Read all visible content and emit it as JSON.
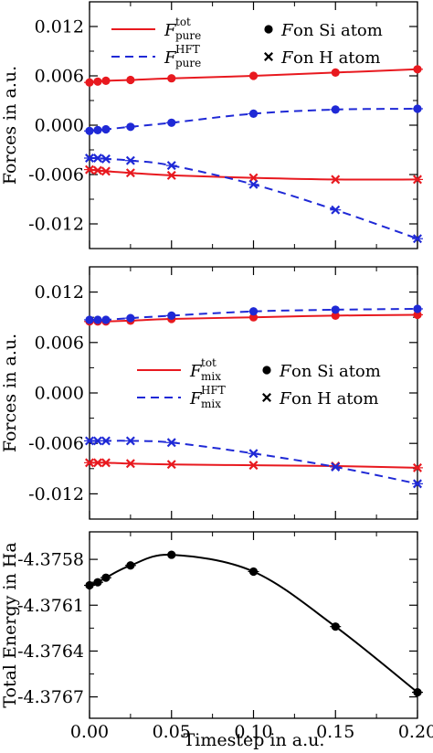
{
  "chart_data": [
    {
      "type": "line",
      "x": [
        0.0,
        0.005,
        0.01,
        0.025,
        0.05,
        0.1,
        0.15,
        0.2
      ],
      "ylim": [
        -0.015,
        0.015
      ],
      "yticks": [
        0.012,
        0.006,
        0.0,
        -0.006,
        -0.012
      ],
      "ytick_labels": [
        "0.012",
        "0.006",
        "0.000",
        "-0.006",
        "-0.012"
      ],
      "ylabel": "Forces in a.u.",
      "legend": [
        {
          "key": "tot",
          "style": "solid",
          "color": "#e8191f",
          "label_main": "F",
          "label_sup": "tot",
          "label_sub": "pure"
        },
        {
          "key": "hft",
          "style": "dashed",
          "color": "#1f29d6",
          "label_main": "F",
          "label_sup": "HFT",
          "label_sub": "pure"
        }
      ],
      "marker_legend": [
        {
          "marker": "circle",
          "label_main": "F",
          "label_rest": " on Si atom"
        },
        {
          "marker": "cross",
          "label_main": "F",
          "label_rest": " on H atom"
        }
      ],
      "series": [
        {
          "key": "tot",
          "atom": "Si",
          "values": [
            0.0052,
            0.0053,
            0.0054,
            0.0055,
            0.0057,
            0.006,
            0.0064,
            0.0068
          ]
        },
        {
          "key": "hft",
          "atom": "Si",
          "values": [
            -0.0007,
            -0.0006,
            -0.0005,
            -0.0002,
            0.0003,
            0.0014,
            0.0019,
            0.002
          ]
        },
        {
          "key": "tot",
          "atom": "H",
          "values": [
            -0.0054,
            -0.0055,
            -0.0056,
            -0.0058,
            -0.0061,
            -0.0064,
            -0.0066,
            -0.0066
          ]
        },
        {
          "key": "hft",
          "atom": "H",
          "values": [
            -0.004,
            -0.004,
            -0.0041,
            -0.0043,
            -0.0049,
            -0.0072,
            -0.0103,
            -0.0138
          ]
        }
      ]
    },
    {
      "type": "line",
      "x": [
        0.0,
        0.005,
        0.01,
        0.025,
        0.05,
        0.1,
        0.15,
        0.2
      ],
      "ylim": [
        -0.015,
        0.015
      ],
      "yticks": [
        0.012,
        0.006,
        0.0,
        -0.006,
        -0.012
      ],
      "ytick_labels": [
        "0.012",
        "0.006",
        "0.000",
        "-0.006",
        "-0.012"
      ],
      "ylabel": "Forces in a.u.",
      "legend": [
        {
          "key": "tot",
          "style": "solid",
          "color": "#e8191f",
          "label_main": "F",
          "label_sup": "tot",
          "label_sub": "mix"
        },
        {
          "key": "hft",
          "style": "dashed",
          "color": "#1f29d6",
          "label_main": "F",
          "label_sup": "HFT",
          "label_sub": "mix"
        }
      ],
      "marker_legend": [
        {
          "marker": "circle",
          "label_main": "F",
          "label_rest": " on Si atom"
        },
        {
          "marker": "cross",
          "label_main": "F",
          "label_rest": " on H atom"
        }
      ],
      "series": [
        {
          "key": "tot",
          "atom": "Si",
          "values": [
            0.0085,
            0.0085,
            0.0085,
            0.0086,
            0.0088,
            0.009,
            0.0092,
            0.0093
          ]
        },
        {
          "key": "hft",
          "atom": "Si",
          "values": [
            0.0087,
            0.0087,
            0.0087,
            0.0089,
            0.0092,
            0.0097,
            0.0099,
            0.01
          ]
        },
        {
          "key": "tot",
          "atom": "H",
          "values": [
            -0.0083,
            -0.0083,
            -0.0083,
            -0.0084,
            -0.0085,
            -0.0086,
            -0.0087,
            -0.0089
          ]
        },
        {
          "key": "hft",
          "atom": "H",
          "values": [
            -0.0057,
            -0.0057,
            -0.0057,
            -0.0057,
            -0.0059,
            -0.0072,
            -0.0088,
            -0.0108
          ]
        }
      ]
    },
    {
      "type": "line",
      "x": [
        0.0,
        0.005,
        0.01,
        0.025,
        0.05,
        0.1,
        0.15,
        0.2
      ],
      "ylim": [
        -4.37684,
        -4.37562
      ],
      "yticks": [
        -4.3758,
        -4.3761,
        -4.3764,
        -4.3767
      ],
      "ytick_labels": [
        "-4.3758",
        "-4.3761",
        "-4.3764",
        "-4.3767"
      ],
      "xlim": [
        0.0,
        0.2
      ],
      "xticks": [
        0.0,
        0.05,
        0.1,
        0.15,
        0.2
      ],
      "xtick_labels": [
        "0.00",
        "0.05",
        "0.10",
        "0.15",
        "0.20"
      ],
      "xlabel": "Timestep in a.u.",
      "ylabel": "Total Energy in Ha",
      "series": [
        {
          "values": [
            -4.37597,
            -4.37595,
            -4.37592,
            -4.37584,
            -4.37577,
            -4.37588,
            -4.37624,
            -4.37667
          ]
        }
      ],
      "color": "#000000"
    }
  ]
}
